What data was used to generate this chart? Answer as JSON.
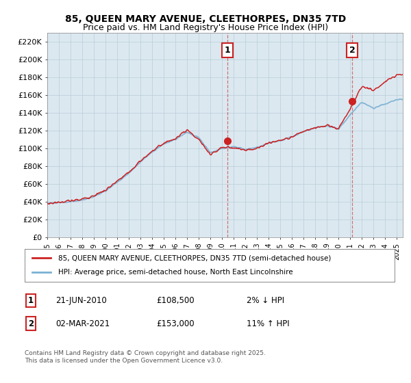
{
  "title1": "85, QUEEN MARY AVENUE, CLEETHORPES, DN35 7TD",
  "title2": "Price paid vs. HM Land Registry's House Price Index (HPI)",
  "ylim": [
    0,
    230000
  ],
  "yticks": [
    0,
    20000,
    40000,
    60000,
    80000,
    100000,
    120000,
    140000,
    160000,
    180000,
    200000,
    220000
  ],
  "ytick_labels": [
    "£0",
    "£20K",
    "£40K",
    "£60K",
    "£80K",
    "£100K",
    "£120K",
    "£140K",
    "£160K",
    "£180K",
    "£200K",
    "£220K"
  ],
  "hpi_color": "#7ab0d4",
  "price_color": "#cc2222",
  "plot_bg_color": "#dce8f0",
  "transaction1_year": 2010.47,
  "transaction1_price": 108500,
  "transaction2_year": 2021.17,
  "transaction2_price": 153000,
  "transaction1_date": "21-JUN-2010",
  "transaction1_amount": "£108,500",
  "transaction1_change": "2% ↓ HPI",
  "transaction2_date": "02-MAR-2021",
  "transaction2_amount": "£153,000",
  "transaction2_change": "11% ↑ HPI",
  "legend_line1": "85, QUEEN MARY AVENUE, CLEETHORPES, DN35 7TD (semi-detached house)",
  "legend_line2": "HPI: Average price, semi-detached house, North East Lincolnshire",
  "footer": "Contains HM Land Registry data © Crown copyright and database right 2025.\nThis data is licensed under the Open Government Licence v3.0.",
  "bg_color": "#ffffff",
  "grid_color": "#b8cdd8",
  "xmin": 1995,
  "xmax": 2025.5,
  "hpi_waypoints_x": [
    1995,
    1996,
    1997,
    1998,
    1999,
    2000,
    2001,
    2002,
    2003,
    2004,
    2005,
    2006,
    2007,
    2008,
    2009,
    2010,
    2011,
    2012,
    2013,
    2014,
    2015,
    2016,
    2017,
    2018,
    2019,
    2020,
    2021,
    2022,
    2023,
    2024,
    2025
  ],
  "hpi_waypoints_y": [
    38500,
    39000,
    40000,
    42000,
    46000,
    52000,
    62000,
    72000,
    85000,
    96000,
    105000,
    110000,
    118000,
    112000,
    95000,
    100000,
    102000,
    99000,
    101000,
    106000,
    109000,
    113000,
    119000,
    123000,
    125000,
    122000,
    138000,
    152000,
    145000,
    150000,
    155000
  ],
  "price_waypoints_x": [
    1995,
    1996,
    1997,
    1998,
    1999,
    2000,
    2001,
    2002,
    2003,
    2004,
    2005,
    2006,
    2007,
    2008,
    2009,
    2010,
    2011,
    2012,
    2013,
    2014,
    2015,
    2016,
    2017,
    2018,
    2019,
    2020,
    2021,
    2022,
    2023,
    2024,
    2025
  ],
  "price_waypoints_y": [
    38000,
    39500,
    41000,
    43000,
    47000,
    53000,
    63000,
    73000,
    86000,
    97000,
    106000,
    111000,
    120000,
    110000,
    93000,
    101000,
    101000,
    98000,
    100000,
    106000,
    109000,
    113000,
    119000,
    123000,
    126000,
    122000,
    145000,
    170000,
    165000,
    175000,
    183000
  ]
}
